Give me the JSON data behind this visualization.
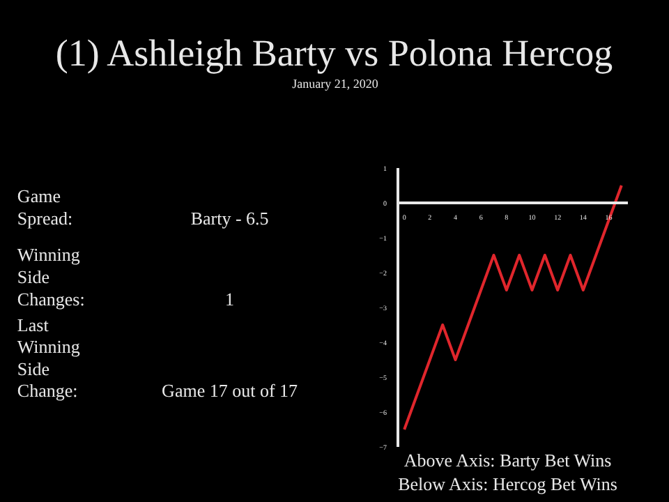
{
  "chart_data": [
    {
      "type": "other",
      "title": "(1) Ashleigh Barty vs Polona Hercog",
      "subtitle": "January 21, 2020",
      "annotations": [
        "Game Spread:",
        "Barty - 6.5",
        "Winning Side Changes:",
        "1",
        "Last Winning Side Change:",
        "Game 17 out of 17"
      ]
    },
    {
      "type": "line",
      "x": [
        0,
        1,
        2,
        3,
        4,
        5,
        6,
        7,
        8,
        9,
        10,
        11,
        12,
        13,
        14,
        15,
        16,
        17
      ],
      "values": [
        -6.5,
        -5.5,
        -4.5,
        -3.5,
        -4.5,
        -3.5,
        -2.5,
        -1.5,
        -2.5,
        -1.5,
        -2.5,
        -1.5,
        -2.5,
        -1.5,
        -2.5,
        -1.5,
        -0.5,
        0.5
      ],
      "color": "#e0262c",
      "line_style": "solid",
      "xlim": [
        -0.5,
        17.5
      ],
      "ylim": [
        -7,
        1
      ],
      "xticks": [
        0,
        2,
        4,
        6,
        8,
        10,
        12,
        14,
        16
      ],
      "yticks": [
        1,
        0,
        -1,
        -2,
        -3,
        -4,
        -5,
        -6,
        -7
      ],
      "grid": false,
      "annotations": [
        "Above Axis:   Barty Bet Wins",
        "Below Axis:   Hercog Bet Wins"
      ]
    }
  ]
}
